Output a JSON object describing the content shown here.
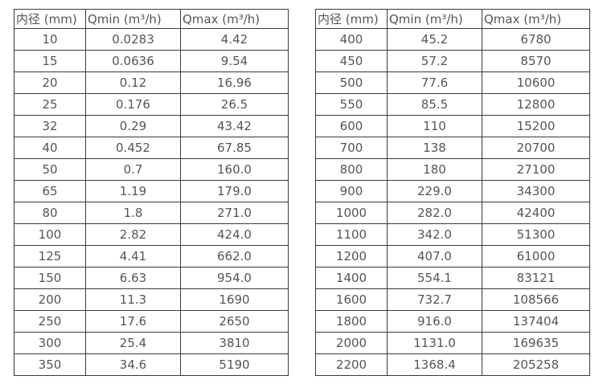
{
  "page": {
    "background": "#ffffff",
    "border_color": "#3a3a3a",
    "text_color": "#555555"
  },
  "tables": [
    {
      "name": "small-diameter-specs",
      "headers": [
        "内径 (mm)",
        "Qmin (m³/h)",
        "Qmax (m³/h)"
      ],
      "rows": [
        [
          "10",
          "0.0283",
          "4.42"
        ],
        [
          "15",
          "0.0636",
          "9.54"
        ],
        [
          "20",
          "0.12",
          "16.96"
        ],
        [
          "25",
          "0.176",
          "26.5"
        ],
        [
          "32",
          "0.29",
          "43.42"
        ],
        [
          "40",
          "0.452",
          "67.85"
        ],
        [
          "50",
          "0.7",
          "160.0"
        ],
        [
          "65",
          "1.19",
          "179.0"
        ],
        [
          "80",
          "1.8",
          "271.0"
        ],
        [
          "100",
          "2.82",
          "424.0"
        ],
        [
          "125",
          "4.41",
          "662.0"
        ],
        [
          "150",
          "6.63",
          "954.0"
        ],
        [
          "200",
          "11.3",
          "1690"
        ],
        [
          "250",
          "17.6",
          "2650"
        ],
        [
          "300",
          "25.4",
          "3810"
        ],
        [
          "350",
          "34.6",
          "5190"
        ]
      ]
    },
    {
      "name": "large-diameter-specs",
      "headers": [
        "内径 (mm)",
        "Qmin (m³/h)",
        "Qmax (m³/h)"
      ],
      "rows": [
        [
          "400",
          "45.2",
          "6780"
        ],
        [
          "450",
          "57.2",
          "8570"
        ],
        [
          "500",
          "77.6",
          "10600"
        ],
        [
          "550",
          "85.5",
          "12800"
        ],
        [
          "600",
          "110",
          "15200"
        ],
        [
          "700",
          "138",
          "20700"
        ],
        [
          "800",
          "180",
          "27100"
        ],
        [
          "900",
          "229.0",
          "34300"
        ],
        [
          "1000",
          "282.0",
          "42400"
        ],
        [
          "1100",
          "342.0",
          "51300"
        ],
        [
          "1200",
          "407.0",
          "61000"
        ],
        [
          "1400",
          "554.1",
          "83121"
        ],
        [
          "1600",
          "732.7",
          "108566"
        ],
        [
          "1800",
          "916.0",
          "137404"
        ],
        [
          "2000",
          "1131.0",
          "169635"
        ],
        [
          "2200",
          "1368.4",
          "205258"
        ]
      ]
    }
  ]
}
